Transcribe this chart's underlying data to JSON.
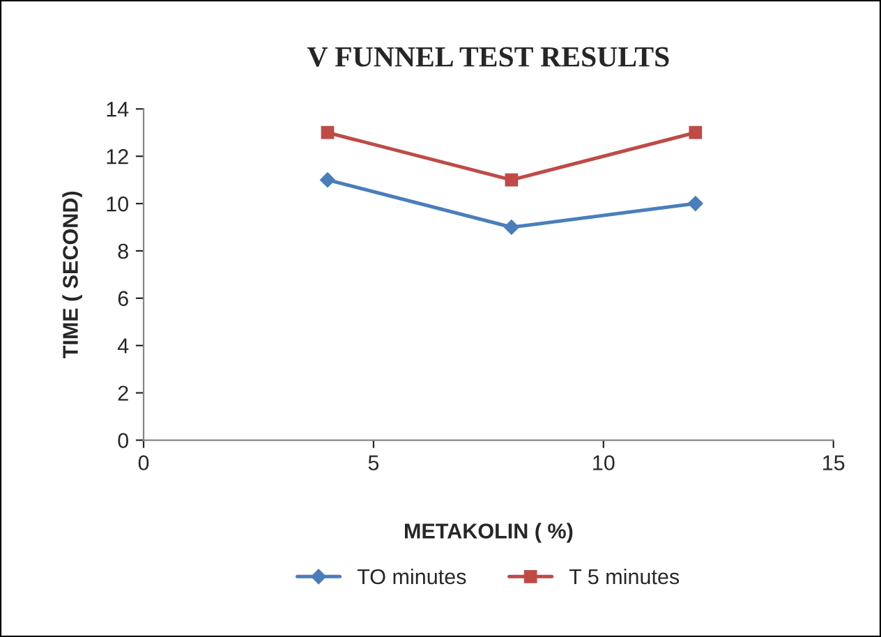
{
  "chart_data": {
    "type": "line",
    "title": "V FUNNEL TEST RESULTS",
    "xlabel": "METAKOLIN ( %)",
    "ylabel": "TIME ( SECOND)",
    "x": [
      4,
      8,
      12
    ],
    "series": [
      {
        "name": "TO minutes",
        "color": "#4a7ebb",
        "values": [
          11,
          9,
          10
        ],
        "marker": "diamond"
      },
      {
        "name": "T 5 minutes",
        "color": "#be4b48",
        "values": [
          13,
          11,
          13
        ],
        "marker": "square"
      }
    ],
    "xlim": [
      0,
      15
    ],
    "xticks": [
      0,
      5,
      10,
      15
    ],
    "ylim": [
      0,
      14
    ],
    "yticks": [
      0,
      2,
      4,
      6,
      8,
      10,
      12,
      14
    ],
    "grid": false,
    "legend": "bottom",
    "line_style": "solid"
  }
}
